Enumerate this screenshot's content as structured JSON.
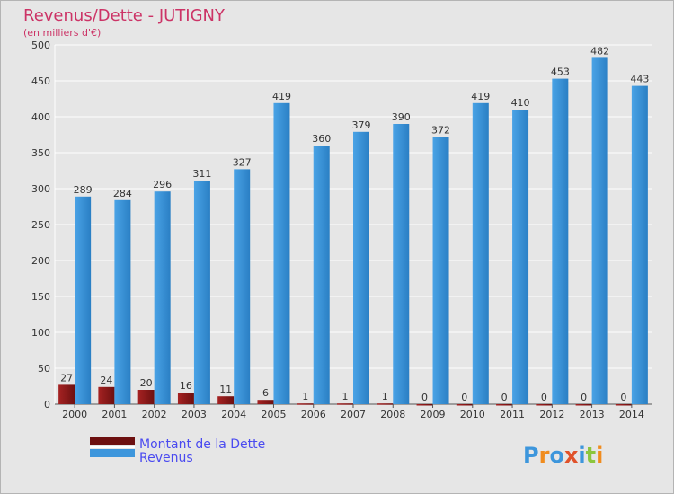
{
  "chart_data": {
    "type": "bar",
    "title": "Revenus/Dette - JUTIGNY",
    "subtitle": "(en milliers d'€)",
    "categories": [
      "2000",
      "2001",
      "2002",
      "2003",
      "2004",
      "2005",
      "2006",
      "2007",
      "2008",
      "2009",
      "2010",
      "2011",
      "2012",
      "2013",
      "2014"
    ],
    "series": [
      {
        "name": "Montant de la Dette",
        "color": "#8b1a1a",
        "values": [
          27,
          24,
          20,
          16,
          11,
          6,
          1,
          1,
          1,
          0,
          0,
          0,
          0,
          0,
          0
        ]
      },
      {
        "name": "Revenus",
        "color": "#3d96dc",
        "values": [
          289,
          284,
          296,
          311,
          327,
          419,
          360,
          379,
          390,
          372,
          419,
          410,
          453,
          482,
          443
        ]
      }
    ],
    "ylim": [
      0,
      500
    ],
    "yticks": [
      0,
      50,
      100,
      150,
      200,
      250,
      300,
      350,
      400,
      450,
      500
    ],
    "grid": true,
    "legend_position": "bottom-left"
  },
  "logo": {
    "text": "Proxiti"
  }
}
